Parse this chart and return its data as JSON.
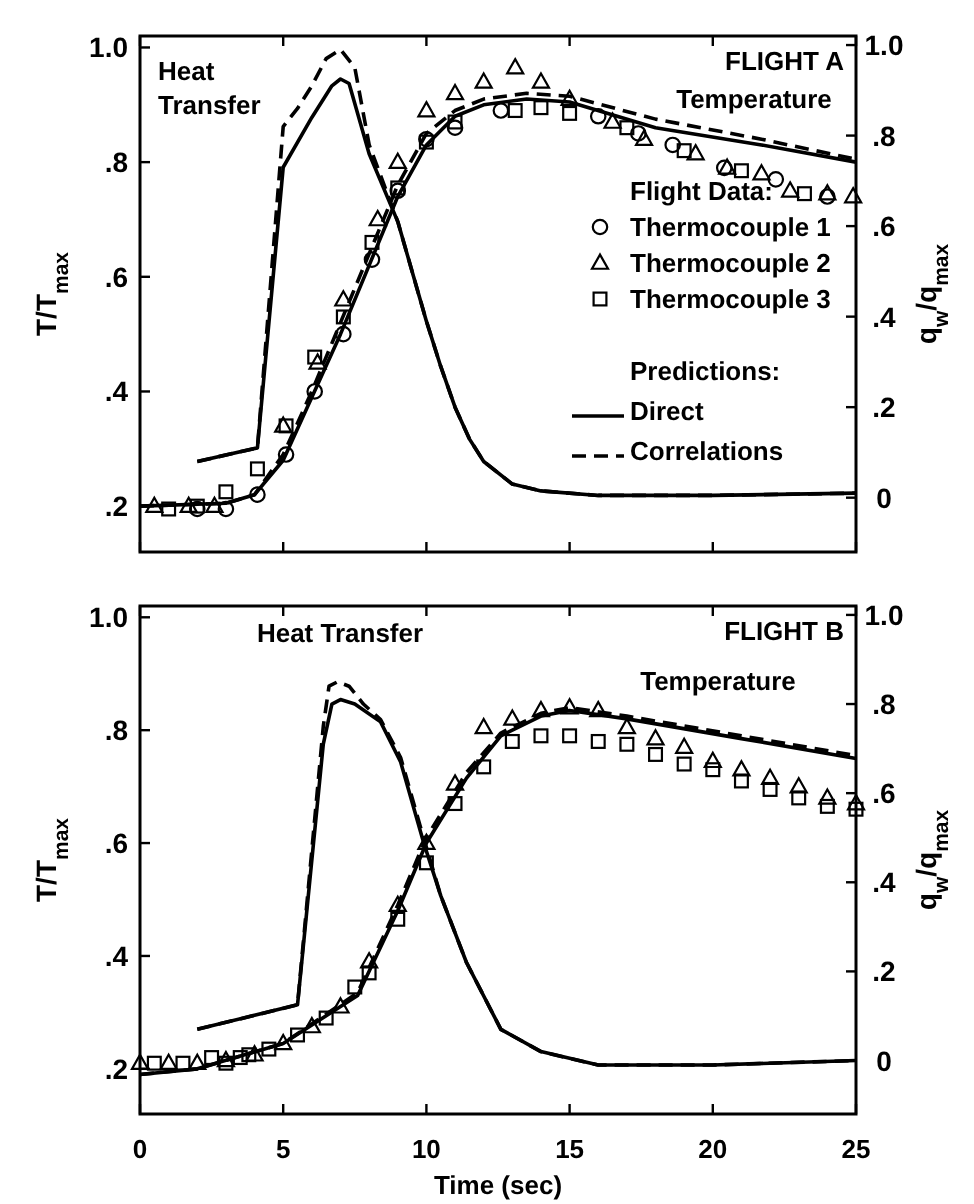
{
  "chart_data": [
    {
      "type": "scatter",
      "title": "FLIGHT A",
      "ylabel": "T/T$_{max}$",
      "y2label": "q$_{w}$/q$_{max}$",
      "xlim": [
        0,
        25
      ],
      "xticks": [
        0,
        5,
        10,
        15,
        20,
        25
      ],
      "tick_labels": "y",
      "ylim": [
        0.12,
        1.02
      ],
      "yticks": [
        {
          "value": 0.2,
          "label": ".2"
        },
        {
          "value": 0.4,
          "label": ".4"
        },
        {
          "value": 0.6,
          "label": ".6"
        },
        {
          "value": 0.8,
          "label": ".8"
        },
        {
          "value": 1.0,
          "label": "1.0"
        }
      ],
      "y2lim": [
        -0.12,
        1.02
      ],
      "y2ticks": [
        0,
        {
          "value": 0.2,
          "label": ".2"
        },
        {
          "value": 0.4,
          "label": ".4"
        },
        {
          "value": 0.6,
          "label": ".6"
        },
        {
          "value": 0.8,
          "label": ".8"
        },
        {
          "value": 1.0,
          "label": "1.0"
        }
      ],
      "legend": "right",
      "legend_title": "Flight Data:",
      "grid": false,
      "annotations": [
        "Heat\nTransfer",
        "Temperature",
        "Predictions:"
      ],
      "series": [
        {
          "marker": "circle",
          "name": "Thermocouple 1",
          "color": "#000000",
          "x": [
            2,
            3,
            4.1,
            5.1,
            6.1,
            7.1,
            8.1,
            9,
            10,
            11,
            12.6,
            16,
            17.4,
            18.6,
            20.4,
            22.2,
            24
          ],
          "values": [
            0.195,
            0.195,
            0.22,
            0.29,
            0.4,
            0.5,
            0.63,
            0.75,
            0.84,
            0.86,
            0.89,
            0.88,
            0.85,
            0.83,
            0.79,
            0.77,
            0.74
          ]
        },
        {
          "marker": "triangle",
          "name": "Thermocouple 2",
          "color": "#000000",
          "x": [
            0.5,
            1.7,
            2.6,
            5.0,
            6.2,
            7.1,
            8.3,
            9,
            10,
            11,
            12,
            13.1,
            14,
            15,
            16.5,
            17.6,
            19.4,
            20.5,
            21.7,
            22.7,
            24,
            24.9
          ],
          "values": [
            0.2,
            0.2,
            0.2,
            0.34,
            0.45,
            0.56,
            0.7,
            0.8,
            0.89,
            0.92,
            0.94,
            0.965,
            0.94,
            0.91,
            0.87,
            0.84,
            0.815,
            0.79,
            0.78,
            0.75,
            0.745,
            0.74
          ]
        },
        {
          "marker": "square",
          "name": "Thermocouple 3",
          "color": "#000000",
          "x": [
            1,
            2,
            3,
            4.1,
            5.1,
            6.1,
            7.1,
            8.1,
            9,
            10,
            11,
            13.1,
            14,
            15,
            17,
            19,
            21,
            23.2
          ],
          "values": [
            0.195,
            0.2,
            0.225,
            0.265,
            0.34,
            0.46,
            0.53,
            0.66,
            0.755,
            0.835,
            0.87,
            0.89,
            0.895,
            0.885,
            0.86,
            0.82,
            0.785,
            0.745
          ]
        },
        {
          "type": "line",
          "line_style": "solid",
          "name": "Direct",
          "color": "#000000",
          "x": [
            0,
            3,
            4,
            5,
            6,
            7,
            8,
            9,
            10,
            11,
            12,
            13.5,
            15,
            18,
            21.7,
            25
          ],
          "values": [
            0.2,
            0.205,
            0.22,
            0.28,
            0.39,
            0.5,
            0.62,
            0.74,
            0.83,
            0.88,
            0.9,
            0.91,
            0.905,
            0.86,
            0.83,
            0.8
          ]
        },
        {
          "type": "line",
          "line_style": "dashed",
          "name": "Correlations",
          "color": "#000000",
          "x": [
            0,
            3,
            4,
            5,
            6,
            7,
            8,
            9,
            10,
            11,
            12,
            13.5,
            15,
            18,
            21.7,
            25
          ],
          "values": [
            0.2,
            0.205,
            0.22,
            0.29,
            0.4,
            0.52,
            0.64,
            0.76,
            0.85,
            0.89,
            0.91,
            0.92,
            0.915,
            0.875,
            0.84,
            0.805
          ]
        },
        {
          "type": "line",
          "line_style": "solid",
          "axis": "y2",
          "color": "#000000",
          "x": [
            2,
            4.1,
            5,
            6,
            6.7,
            7,
            7.3,
            8,
            9,
            10,
            10.5,
            11,
            11.5,
            12,
            13,
            14,
            16,
            20,
            25
          ],
          "values": [
            0.08,
            0.11,
            0.73,
            0.84,
            0.91,
            0.925,
            0.915,
            0.76,
            0.61,
            0.39,
            0.29,
            0.2,
            0.13,
            0.08,
            0.03,
            0.015,
            0.005,
            0.005,
            0.01
          ]
        },
        {
          "type": "line",
          "line_style": "dashed",
          "axis": "y2",
          "color": "#000000",
          "x": [
            2,
            4.1,
            5,
            5.5,
            6,
            6.5,
            7,
            7.5,
            8,
            9,
            10,
            10.5,
            11,
            11.5,
            12,
            13,
            14,
            16,
            20,
            25
          ],
          "values": [
            0.08,
            0.11,
            0.82,
            0.86,
            0.91,
            0.97,
            0.99,
            0.95,
            0.78,
            0.61,
            0.39,
            0.29,
            0.2,
            0.13,
            0.08,
            0.03,
            0.015,
            0.005,
            0.005,
            0.01
          ]
        }
      ]
    },
    {
      "type": "scatter",
      "title": "FLIGHT B",
      "xlabel": "Time (sec)",
      "ylabel": "T/T$_{max}$",
      "y2label": "q$_{w}$/q$_{max}$",
      "xlim": [
        0,
        25
      ],
      "xticks": [
        0,
        5,
        10,
        15,
        20,
        25
      ],
      "ylim": [
        0.12,
        1.02
      ],
      "yticks": [
        {
          "value": 0.2,
          "label": ".2"
        },
        {
          "value": 0.4,
          "label": ".4"
        },
        {
          "value": 0.6,
          "label": ".6"
        },
        {
          "value": 0.8,
          "label": ".8"
        },
        {
          "value": 1.0,
          "label": "1.0"
        }
      ],
      "y2lim": [
        -0.12,
        1.02
      ],
      "y2ticks": [
        0,
        {
          "value": 0.2,
          "label": ".2"
        },
        {
          "value": 0.4,
          "label": ".4"
        },
        {
          "value": 0.6,
          "label": ".6"
        },
        {
          "value": 0.8,
          "label": ".8"
        },
        {
          "value": 1.0,
          "label": "1.0"
        }
      ],
      "legend": false,
      "grid": false,
      "annotations": [
        "Heat Transfer",
        "Temperature"
      ],
      "series": [
        {
          "marker": "triangle",
          "color": "#000000",
          "x": [
            0,
            1,
            2,
            3,
            4,
            5,
            6,
            7,
            8,
            9,
            10,
            11,
            12,
            13,
            14,
            15,
            16,
            17,
            18,
            19,
            20,
            21,
            22,
            23,
            24,
            25
          ],
          "values": [
            0.21,
            0.21,
            0.21,
            0.215,
            0.225,
            0.245,
            0.275,
            0.31,
            0.39,
            0.49,
            0.6,
            0.705,
            0.805,
            0.82,
            0.835,
            0.84,
            0.835,
            0.805,
            0.785,
            0.77,
            0.745,
            0.73,
            0.715,
            0.7,
            0.68,
            0.67
          ]
        },
        {
          "marker": "square",
          "color": "#000000",
          "x": [
            0.5,
            1.5,
            2.5,
            3,
            3.5,
            3.8,
            4.5,
            5.5,
            6.5,
            7.5,
            8,
            9,
            10,
            11,
            12,
            13,
            14,
            15,
            16,
            17,
            18,
            19,
            20,
            21,
            22,
            23,
            24,
            25
          ],
          "values": [
            0.21,
            0.21,
            0.22,
            0.21,
            0.22,
            0.225,
            0.235,
            0.26,
            0.29,
            0.345,
            0.37,
            0.465,
            0.565,
            0.67,
            0.735,
            0.78,
            0.79,
            0.79,
            0.78,
            0.775,
            0.757,
            0.74,
            0.73,
            0.71,
            0.695,
            0.68,
            0.665,
            0.66
          ]
        },
        {
          "type": "line",
          "line_style": "solid",
          "color": "#000000",
          "x": [
            0,
            2,
            5,
            7.6,
            9,
            10,
            11.4,
            12.6,
            14,
            15,
            17,
            21,
            25
          ],
          "values": [
            0.19,
            0.2,
            0.245,
            0.33,
            0.48,
            0.6,
            0.715,
            0.79,
            0.825,
            0.835,
            0.82,
            0.785,
            0.75
          ]
        },
        {
          "type": "line",
          "line_style": "dashed",
          "color": "#000000",
          "x": [
            0,
            2,
            5,
            7.6,
            9,
            10,
            11.4,
            12.6,
            14,
            15,
            17,
            21,
            25
          ],
          "values": [
            0.19,
            0.2,
            0.245,
            0.335,
            0.49,
            0.61,
            0.725,
            0.795,
            0.83,
            0.84,
            0.825,
            0.79,
            0.755
          ]
        },
        {
          "type": "line",
          "line_style": "solid",
          "axis": "y2",
          "color": "#000000",
          "x": [
            2,
            5.5,
            6.4,
            6.7,
            7,
            7.5,
            8.4,
            9.1,
            9.9,
            10.5,
            11.4,
            12.6,
            14,
            16,
            20,
            25
          ],
          "values": [
            0.07,
            0.125,
            0.71,
            0.8,
            0.81,
            0.8,
            0.76,
            0.67,
            0.49,
            0.37,
            0.22,
            0.07,
            0.02,
            -0.01,
            -0.01,
            0
          ]
        },
        {
          "type": "line",
          "line_style": "dashed",
          "axis": "y2",
          "color": "#000000",
          "x": [
            2,
            5.5,
            6.4,
            6.6,
            6.9,
            7.3,
            7.8,
            8.4,
            9.1,
            9.9,
            10.5,
            11.4,
            12.6,
            14,
            16,
            20,
            25
          ],
          "values": [
            0.07,
            0.125,
            0.75,
            0.84,
            0.85,
            0.84,
            0.8,
            0.765,
            0.68,
            0.5,
            0.37,
            0.22,
            0.07,
            0.02,
            -0.01,
            -0.01,
            0
          ]
        }
      ]
    }
  ]
}
